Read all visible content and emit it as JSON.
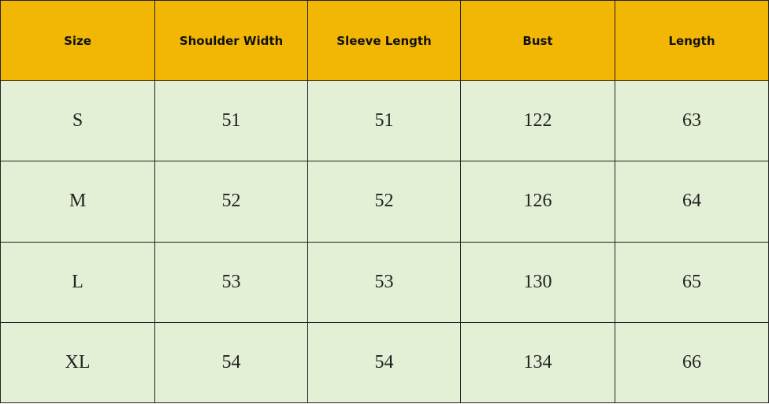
{
  "table": {
    "header": [
      "Size",
      "Shoulder Width",
      "Sleeve Length",
      "Bust",
      "Length"
    ],
    "rows": [
      [
        "S",
        "51",
        "51",
        "122",
        "63"
      ],
      [
        "M",
        "52",
        "52",
        "126",
        "64"
      ],
      [
        "L",
        "53",
        "53",
        "130",
        "65"
      ],
      [
        "XL",
        "54",
        "54",
        "134",
        "66"
      ]
    ]
  }
}
